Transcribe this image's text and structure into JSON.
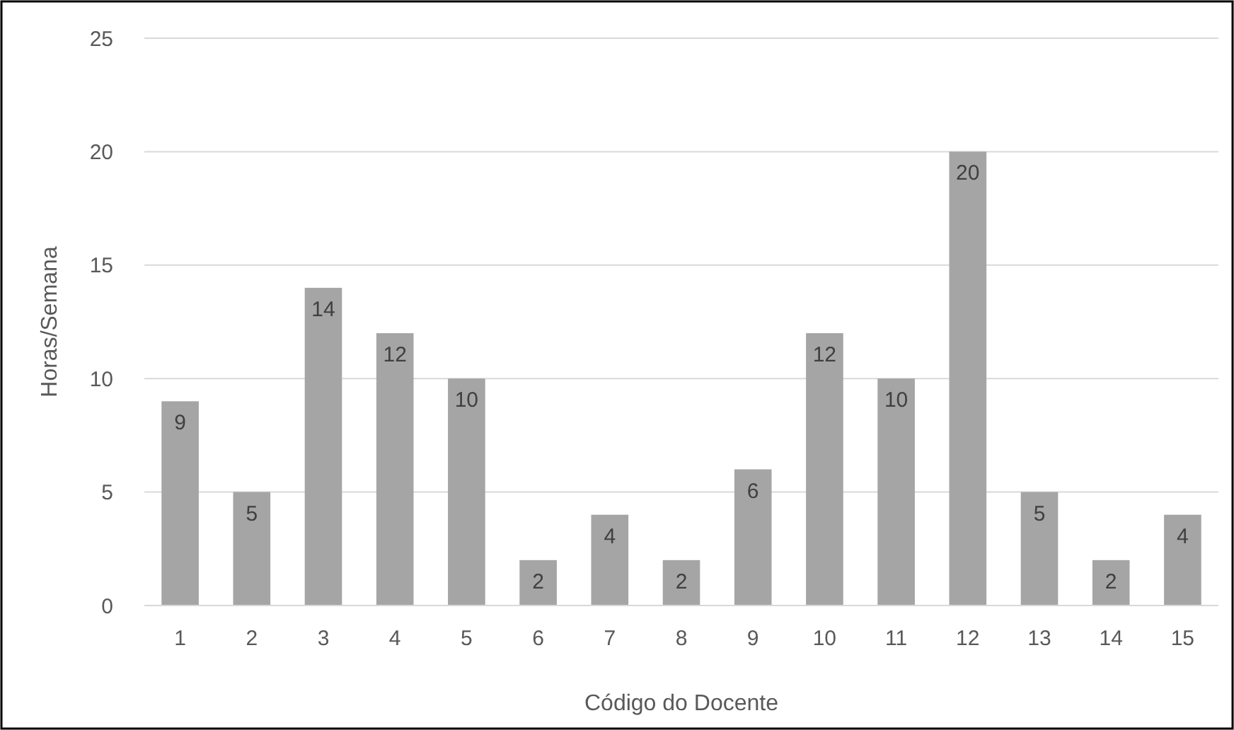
{
  "chart_data": {
    "type": "bar",
    "xlabel": "Código do Docente",
    "ylabel": "Horas/Semana",
    "categories": [
      "1",
      "2",
      "3",
      "4",
      "5",
      "6",
      "7",
      "8",
      "9",
      "10",
      "11",
      "12",
      "13",
      "14",
      "15"
    ],
    "values": [
      9,
      5,
      14,
      12,
      10,
      2,
      4,
      2,
      6,
      12,
      10,
      20,
      5,
      2,
      4
    ],
    "color": "#a5a5a5",
    "ylim": [
      0,
      25
    ],
    "yticks": [
      0,
      5,
      10,
      15,
      20,
      25
    ],
    "grid": "y",
    "data_labels": true
  }
}
